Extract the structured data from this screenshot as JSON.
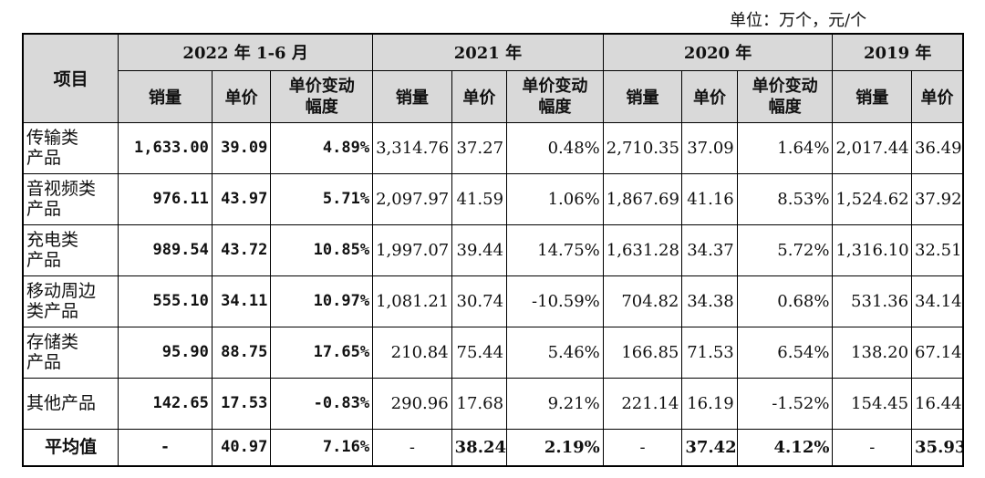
{
  "unit_note": "单位：万个，元/个",
  "header": {
    "item": "项目",
    "periods": [
      "2022 年 1-6 月",
      "2021 年",
      "2020 年",
      "2019 年"
    ],
    "sub": {
      "volume": "销量",
      "price": "单价",
      "change_line1": "单价变动",
      "change_line2": "幅度"
    }
  },
  "rows": [
    {
      "name_l1": "传输类",
      "name_l2": "产品",
      "cells": [
        "1,633.00",
        "39.09",
        "4.89%",
        "3,314.76",
        "37.27",
        "0.48%",
        "2,710.35",
        "37.09",
        "1.64%",
        "2,017.44",
        "36.49"
      ]
    },
    {
      "name_l1": "音视频类",
      "name_l2": "产品",
      "cells": [
        "976.11",
        "43.97",
        "5.71%",
        "2,097.97",
        "41.59",
        "1.06%",
        "1,867.69",
        "41.16",
        "8.53%",
        "1,524.62",
        "37.92"
      ]
    },
    {
      "name_l1": "充电类",
      "name_l2": "产品",
      "cells": [
        "989.54",
        "43.72",
        "10.85%",
        "1,997.07",
        "39.44",
        "14.75%",
        "1,631.28",
        "34.37",
        "5.72%",
        "1,316.10",
        "32.51"
      ]
    },
    {
      "name_l1": "移动周边",
      "name_l2": "类产品",
      "cells": [
        "555.10",
        "34.11",
        "10.97%",
        "1,081.21",
        "30.74",
        "-10.59%",
        "704.82",
        "34.38",
        "0.68%",
        "531.36",
        "34.14"
      ]
    },
    {
      "name_l1": "存储类",
      "name_l2": "产品",
      "cells": [
        "95.90",
        "88.75",
        "17.65%",
        "210.84",
        "75.44",
        "5.46%",
        "166.85",
        "71.53",
        "6.54%",
        "138.20",
        "67.14"
      ]
    },
    {
      "name_l1": "其他产品",
      "name_l2": "",
      "cells": [
        "142.65",
        "17.53",
        "-0.83%",
        "290.96",
        "17.68",
        "9.21%",
        "221.14",
        "16.19",
        "-1.52%",
        "154.45",
        "16.44"
      ]
    }
  ],
  "average": {
    "name": "平均值",
    "cells": [
      "-",
      "40.97",
      "7.16%",
      "-",
      "38.24",
      "2.19%",
      "-",
      "37.42",
      "4.12%",
      "-",
      "35.93"
    ]
  }
}
